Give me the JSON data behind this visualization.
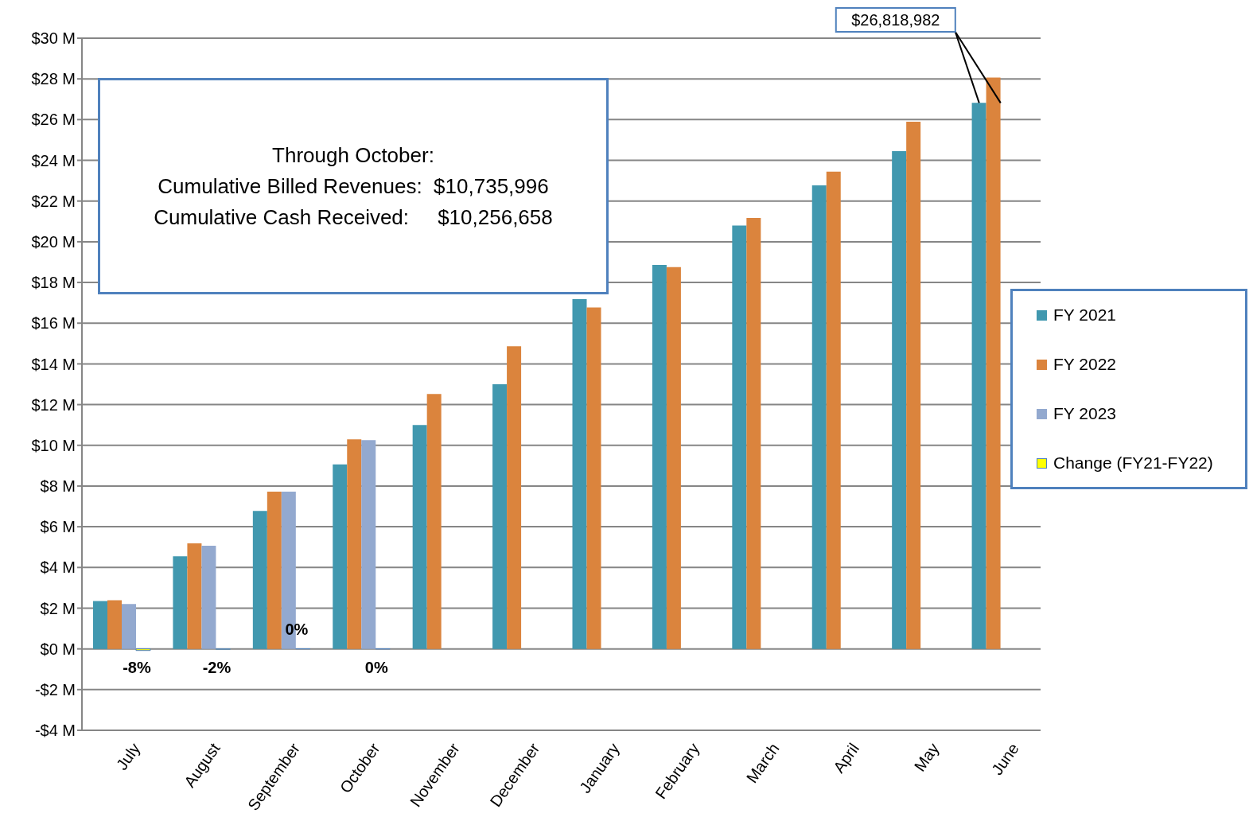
{
  "chart_data": {
    "type": "bar",
    "categories": [
      "July",
      "August",
      "September",
      "October",
      "November",
      "December",
      "January",
      "February",
      "March",
      "April",
      "May",
      "June"
    ],
    "series": [
      {
        "name": "FY 2021",
        "color": "#4198af",
        "values": [
          2.35,
          4.55,
          6.78,
          9.06,
          11.0,
          13.0,
          17.18,
          18.86,
          20.8,
          22.77,
          24.45,
          26.82
        ]
      },
      {
        "name": "FY 2022",
        "color": "#db843d",
        "values": [
          2.39,
          5.18,
          7.72,
          10.29,
          12.52,
          14.87,
          16.77,
          18.75,
          21.17,
          23.44,
          25.9,
          28.07
        ]
      },
      {
        "name": "FY 2023",
        "color": "#93a9cf",
        "values": [
          2.2,
          5.07,
          7.72,
          10.25,
          null,
          null,
          null,
          null,
          null,
          null,
          null,
          null
        ]
      },
      {
        "name": "Change (FY21-FY22)",
        "color": "#ffff00",
        "values": [
          -0.08,
          -0.02,
          0.003,
          -0.003,
          null,
          null,
          null,
          null,
          null,
          null,
          null,
          null
        ],
        "value_labels": [
          "-8%",
          "-2%",
          "0%",
          "0%",
          null,
          null,
          null,
          null,
          null,
          null,
          null,
          null
        ]
      }
    ],
    "ylim": [
      -4,
      30
    ],
    "yticks": [
      {
        "value": -4,
        "label": "-$4 M"
      },
      {
        "value": -2,
        "label": "-$2 M"
      },
      {
        "value": 0,
        "label": "$0 M"
      },
      {
        "value": 2,
        "label": "$2 M"
      },
      {
        "value": 4,
        "label": "$4 M"
      },
      {
        "value": 6,
        "label": "$6 M"
      },
      {
        "value": 8,
        "label": "$8 M"
      },
      {
        "value": 10,
        "label": "$10 M"
      },
      {
        "value": 12,
        "label": "$12 M"
      },
      {
        "value": 14,
        "label": "$14 M"
      },
      {
        "value": 16,
        "label": "$16 M"
      },
      {
        "value": 18,
        "label": "$18 M"
      },
      {
        "value": 20,
        "label": "$20 M"
      },
      {
        "value": 22,
        "label": "$22 M"
      },
      {
        "value": 24,
        "label": "$24 M"
      },
      {
        "value": 26,
        "label": "$26 M"
      },
      {
        "value": 28,
        "label": "$28 M"
      },
      {
        "value": 30,
        "label": "$30 M"
      }
    ],
    "grid": "y",
    "legend": "right",
    "annotations": [
      "Through October:",
      "Cumulative Billed Revenues:  $10,735,996",
      "Cumulative Cash Received:     $10,256,658",
      {
        "text": "$26,818,982",
        "x": "June",
        "y": 26.82
      }
    ]
  }
}
